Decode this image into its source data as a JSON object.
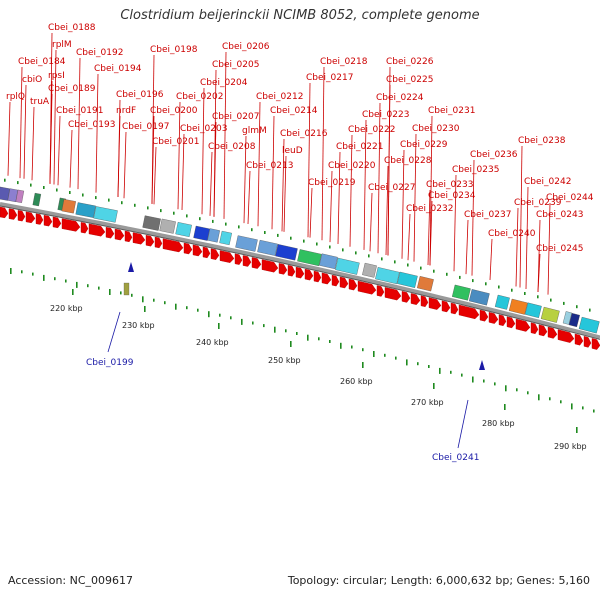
{
  "title": "Clostridium beijerinckii NCIMB 8052, complete genome",
  "footer": {
    "accession": "Accession: NC_009617",
    "topology": "Topology: circular; Length: 6,000,632 bp; Genes: 5,160"
  },
  "colors": {
    "gene_label": "#cc0000",
    "highlight_label": "#1a1aa6",
    "cds_arrow": "#e60000",
    "backbone": "#8a8a8a",
    "tick": "#1f8a1f"
  },
  "kbp_labels": [
    "220 kbp",
    "230 kbp",
    "240 kbp",
    "250 kbp",
    "260 kbp",
    "270 kbp",
    "280 kbp",
    "290 kbp"
  ],
  "red_labels": [
    "Cbei_0188",
    "rplM",
    "Cbei_0184",
    "rpsI",
    "cbiO",
    "Cbei_0189",
    "rplQ",
    "truA",
    "Cbei_0192",
    "Cbei_0194",
    "Cbei_0191",
    "Cbei_0193",
    "Cbei_0196",
    "nrdF",
    "Cbei_0197",
    "Cbei_0198",
    "Cbei_0206",
    "Cbei_0205",
    "Cbei_0204",
    "Cbei_0202",
    "Cbei_0200",
    "Cbei_0201",
    "Cbei_0203",
    "Cbei_0207",
    "glmM",
    "Cbei_0208",
    "Cbei_0212",
    "Cbei_0214",
    "Cbei_0216",
    "leuD",
    "Cbei_0213",
    "Cbei_0218",
    "Cbei_0217",
    "Cbei_0226",
    "Cbei_0225",
    "Cbei_0224",
    "Cbei_0223",
    "Cbei_0222",
    "Cbei_0221",
    "Cbei_0220",
    "Cbei_0219",
    "Cbei_0231",
    "Cbei_0230",
    "Cbei_0229",
    "Cbei_0228",
    "Cbei_0227",
    "Cbei_0233",
    "Cbei_0232",
    "Cbei_0234",
    "Cbei_0238",
    "Cbei_0236",
    "Cbei_0235",
    "Cbei_0237",
    "Cbei_0239",
    "Cbei_0240",
    "Cbei_0242",
    "Cbei_0244",
    "Cbei_0243",
    "Cbei_0245"
  ],
  "blue_labels": [
    "Cbei_0199",
    "Cbei_0241"
  ]
}
